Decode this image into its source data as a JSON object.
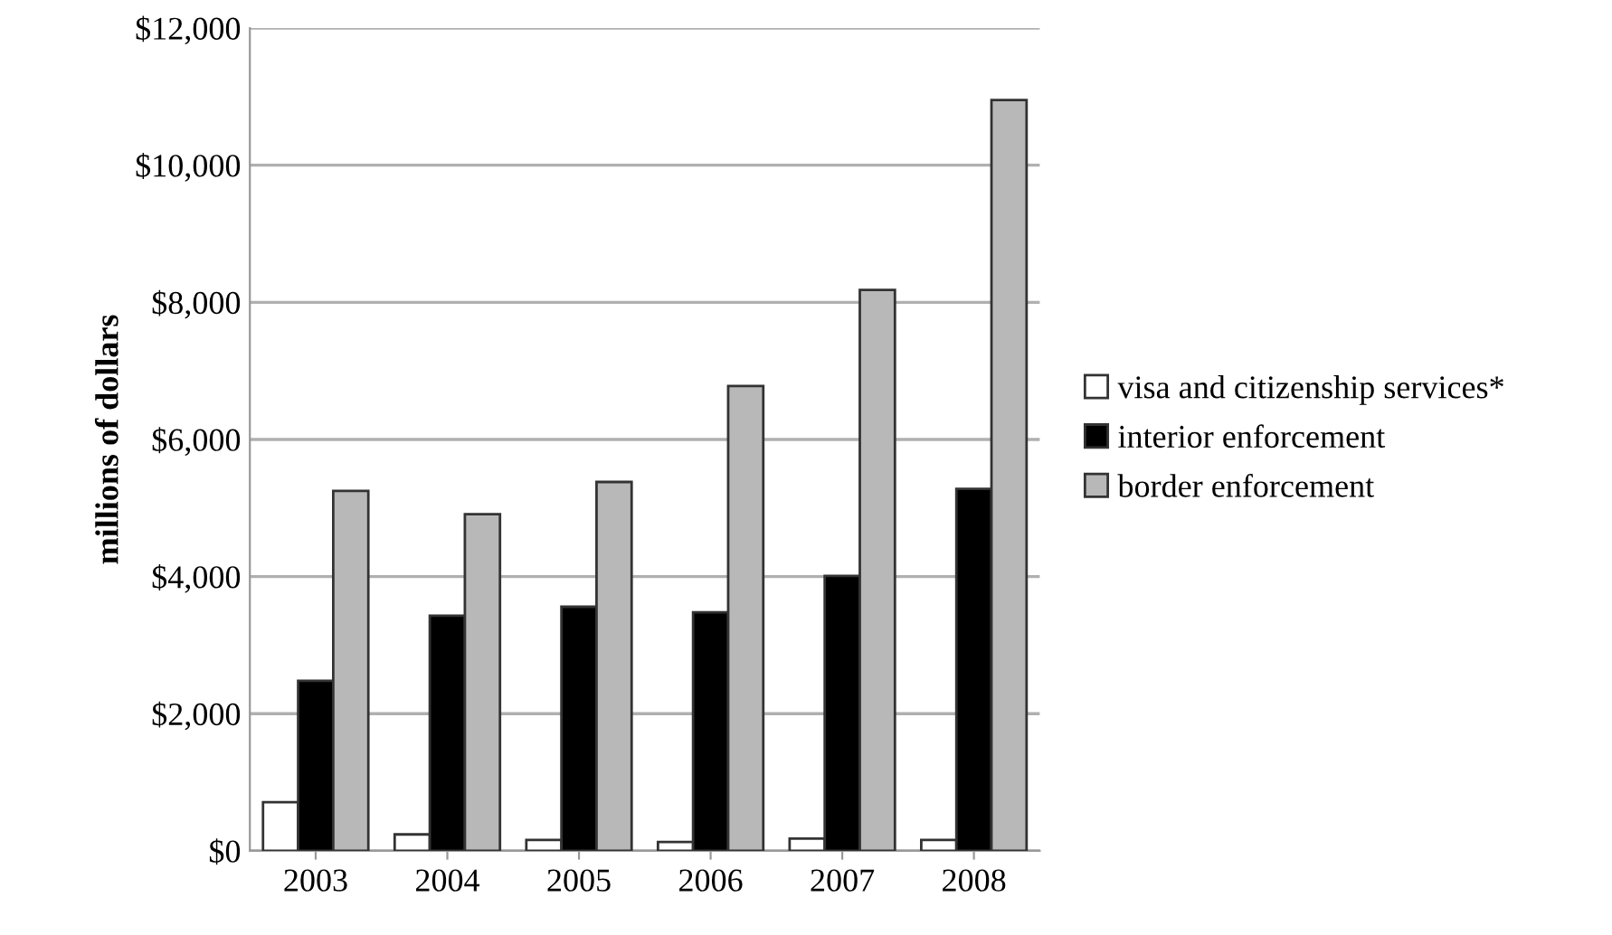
{
  "chart_data": {
    "type": "bar",
    "ylabel": "millions of dollars",
    "categories": [
      "2003",
      "2004",
      "2005",
      "2006",
      "2007",
      "2008"
    ],
    "series": [
      {
        "name": "visa and citizenship services*",
        "color": "#ffffff",
        "values": [
          710,
          240,
          160,
          130,
          180,
          160
        ]
      },
      {
        "name": "interior enforcement",
        "color": "#000000",
        "values": [
          2480,
          3430,
          3560,
          3480,
          4010,
          5280
        ]
      },
      {
        "name": "border enforcement",
        "color": "#b8b8b8",
        "values": [
          5250,
          4910,
          5380,
          6780,
          8180,
          10950
        ]
      }
    ],
    "ylim": [
      0,
      12000
    ],
    "yticks": [
      {
        "value": 0,
        "label": "$0"
      },
      {
        "value": 2000,
        "label": "$2,000"
      },
      {
        "value": 4000,
        "label": "$4,000"
      },
      {
        "value": 6000,
        "label": "$6,000"
      },
      {
        "value": 8000,
        "label": "$8,000"
      },
      {
        "value": 10000,
        "label": "$10,000"
      },
      {
        "value": 12000,
        "label": "$12,000"
      }
    ],
    "grid": "y",
    "legend": "right"
  }
}
